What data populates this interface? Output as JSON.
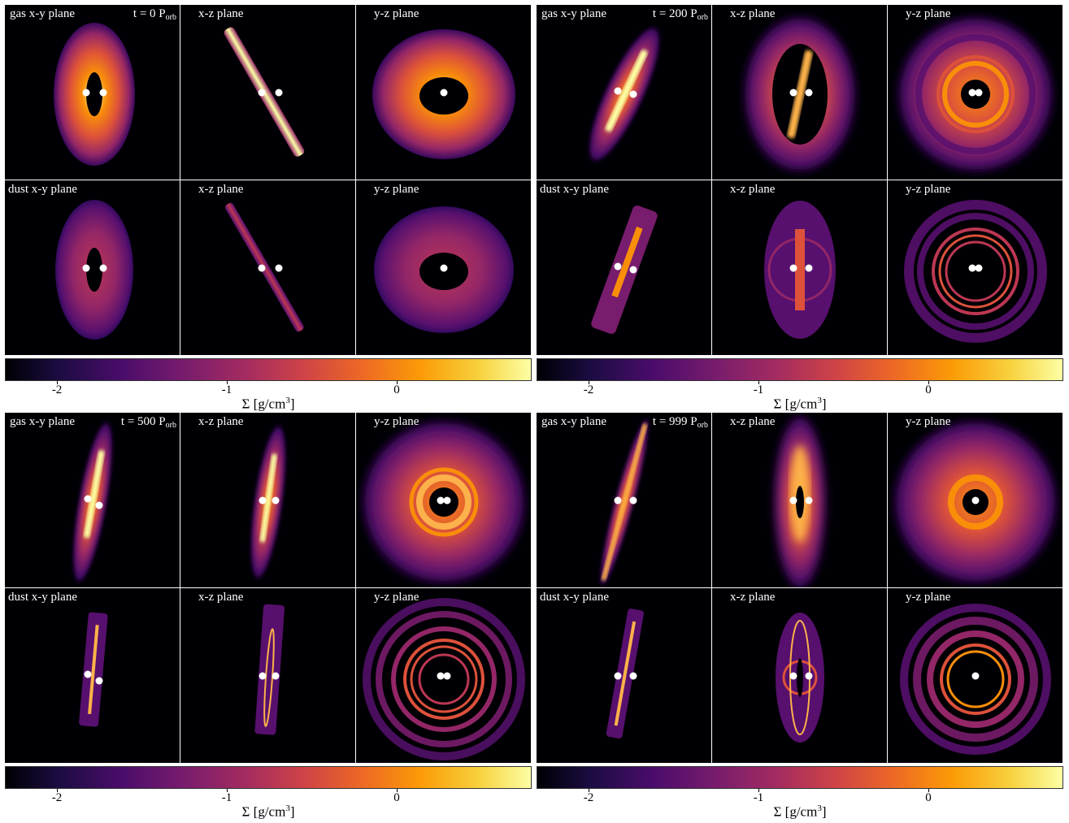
{
  "blocks": [
    {
      "id": "t0",
      "time_prefix": "t = 0 P",
      "time_sub": "orb"
    },
    {
      "id": "t200",
      "time_prefix": "t = 200 P",
      "time_sub": "orb"
    },
    {
      "id": "t500",
      "time_prefix": "t = 500 P",
      "time_sub": "orb"
    },
    {
      "id": "t999",
      "time_prefix": "t = 999 P",
      "time_sub": "orb"
    }
  ],
  "panel_labels": {
    "gas_xy": "gas x-y plane",
    "dust_xy": "dust x-y plane",
    "xz": "x-z plane",
    "yz": "y-z plane"
  },
  "colorbar": {
    "ticks": [
      "-2",
      "-1",
      "0"
    ],
    "label_prefix": "Σ [g/cm",
    "label_sup": "3",
    "label_suffix": "]",
    "colormap": "inferno"
  },
  "colors": {
    "background": "#000004",
    "star": "#ffffff"
  }
}
